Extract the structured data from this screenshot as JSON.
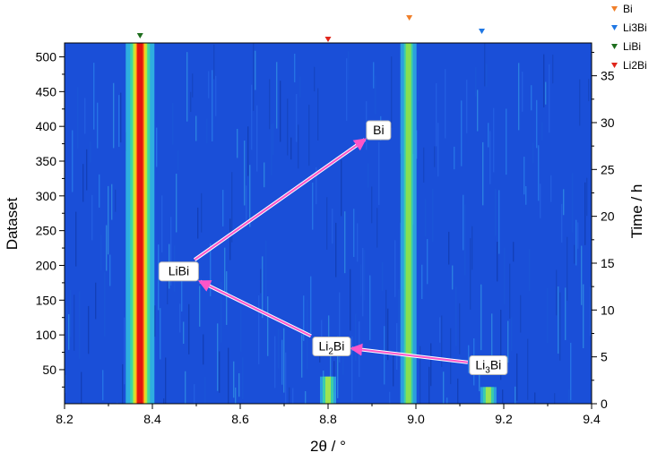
{
  "chart_data": {
    "type": "heatmap",
    "xlabel": "2θ / °",
    "ylabel_left": "Dataset",
    "ylabel_right": "Time / h",
    "xlim": [
      8.2,
      9.4
    ],
    "ylim_left": [
      1,
      520
    ],
    "ylim_right": [
      0,
      38.5
    ],
    "x_ticks": [
      "8.2",
      "8.4",
      "8.6",
      "8.8",
      "9.0",
      "9.2",
      "9.4"
    ],
    "y_left_ticks": [
      "50",
      "100",
      "150",
      "200",
      "250",
      "300",
      "350",
      "400",
      "450",
      "500"
    ],
    "y_right_ticks": [
      "0",
      "5",
      "10",
      "15",
      "20",
      "25",
      "30",
      "35"
    ],
    "legend": {
      "position": "top-right",
      "entries": [
        {
          "name": "Bi",
          "color": "#f07f2a"
        },
        {
          "name": "Li3Bi",
          "color": "#1f77e4"
        },
        {
          "name": "LiBi",
          "color": "#1e6e1e"
        },
        {
          "name": "Li2Bi",
          "color": "#e0261b"
        }
      ]
    },
    "phase_markers": [
      {
        "phase": "LiBi",
        "x": 8.372,
        "color": "#1e6e1e"
      },
      {
        "phase": "Li2Bi",
        "x": 8.8,
        "color": "#e0261b"
      },
      {
        "phase": "Bi",
        "x": 8.985,
        "color": "#f07f2a"
      },
      {
        "phase": "Li3Bi",
        "x": 9.15,
        "color": "#1f77e4"
      }
    ],
    "peaks": [
      {
        "x": 8.372,
        "dataset_start": 1,
        "dataset_end": 520,
        "intensity": "high"
      },
      {
        "x": 8.983,
        "dataset_start": 1,
        "dataset_end": 520,
        "intensity": "medium"
      },
      {
        "x": 8.8,
        "dataset_start": 1,
        "dataset_end": 40,
        "intensity": "low"
      },
      {
        "x": 9.165,
        "dataset_start": 1,
        "dataset_end": 25,
        "intensity": "low"
      }
    ],
    "annotations": [
      {
        "id": "bi",
        "text": "Bi",
        "sub": "",
        "rest": "",
        "x": 8.915,
        "dataset": 395
      },
      {
        "id": "libi",
        "text": "LiBi",
        "sub": "",
        "rest": "",
        "x": 8.46,
        "dataset": 192
      },
      {
        "id": "li2bi",
        "text": "Li",
        "sub": "2",
        "rest": "Bi",
        "x": 8.808,
        "dataset": 84
      },
      {
        "id": "li3bi",
        "text": "Li",
        "sub": "3",
        "rest": "Bi",
        "x": 9.165,
        "dataset": 57
      }
    ],
    "arrows": [
      {
        "from": "libi",
        "to": "bi",
        "color": "#ff55c8"
      },
      {
        "from": "li2bi",
        "to": "libi",
        "color": "#ff55c8"
      },
      {
        "from": "li3bi",
        "to": "li2bi",
        "color": "#ff55c8"
      }
    ],
    "colors": {
      "background": "#1a4fd8",
      "strong_peak": "#e01010",
      "arrow": "#ff55c8"
    }
  }
}
